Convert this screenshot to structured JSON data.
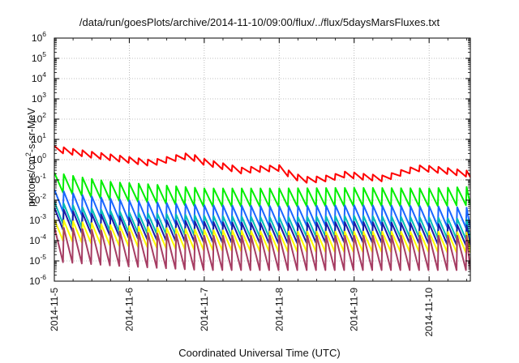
{
  "chart_data": {
    "type": "line",
    "title": "/data/run/goesPlots/archive/2014-11-10/09:00/flux/../flux/5daysMarsFluxes.txt",
    "xlabel": "Coordinated Universal Time (UTC)",
    "ylabel_base": "protons/cm",
    "ylabel_sup": "2",
    "ylabel_rest": "-s-sr-MeV",
    "yscale": "log",
    "ylim": [
      1e-06,
      1000000.0
    ],
    "xlim": [
      0,
      5.55
    ],
    "grid": true,
    "legend": "none",
    "x_ticks": [
      {
        "x": 0,
        "label": "2014-11-5"
      },
      {
        "x": 1,
        "label": "2014-11-6"
      },
      {
        "x": 2,
        "label": "2014-11-7"
      },
      {
        "x": 3,
        "label": "2014-11-8"
      },
      {
        "x": 4,
        "label": "2014-11-9"
      },
      {
        "x": 5,
        "label": "2014-11-10"
      }
    ],
    "y_ticks": [
      {
        "exp": "-6"
      },
      {
        "exp": "-5"
      },
      {
        "exp": "-4"
      },
      {
        "exp": "-3"
      },
      {
        "exp": "-2"
      },
      {
        "exp": "-1"
      },
      {
        "exp": "0"
      },
      {
        "exp": "1"
      },
      {
        "exp": "2"
      },
      {
        "exp": "3"
      },
      {
        "exp": "4"
      },
      {
        "exp": "5"
      },
      {
        "exp": "6"
      }
    ],
    "tick_base": "10",
    "series": [
      {
        "color": "#ff0000",
        "period": 0.125,
        "swing": 0.3,
        "trend": [
          [
            0,
            3.5
          ],
          [
            0.5,
            1.8
          ],
          [
            1.0,
            1.0
          ],
          [
            1.3,
            0.7
          ],
          [
            1.6,
            1.2
          ],
          [
            1.8,
            1.6
          ],
          [
            2.0,
            0.8
          ],
          [
            2.5,
            0.3
          ],
          [
            2.7,
            0.35
          ],
          [
            3.0,
            0.4
          ],
          [
            3.2,
            0.15
          ],
          [
            3.4,
            0.1
          ],
          [
            3.7,
            0.13
          ],
          [
            3.9,
            0.2
          ],
          [
            4.1,
            0.15
          ],
          [
            4.4,
            0.12
          ],
          [
            4.7,
            0.28
          ],
          [
            4.9,
            0.4
          ],
          [
            5.2,
            0.3
          ],
          [
            5.55,
            0.2
          ]
        ]
      },
      {
        "color": "#00ee00",
        "period": 0.125,
        "swing": 0.9,
        "trend": [
          [
            0,
            0.09
          ],
          [
            0.4,
            0.05
          ],
          [
            0.8,
            0.03
          ],
          [
            1.2,
            0.025
          ],
          [
            2.0,
            0.015
          ],
          [
            3.0,
            0.015
          ],
          [
            4.0,
            0.016
          ],
          [
            5.0,
            0.015
          ],
          [
            5.55,
            0.018
          ]
        ]
      },
      {
        "color": "#1a66ff",
        "period": 0.125,
        "swing": 1.0,
        "trend": [
          [
            0,
            0.012
          ],
          [
            0.4,
            0.006
          ],
          [
            0.8,
            0.004
          ],
          [
            1.2,
            0.003
          ],
          [
            2.0,
            0.002
          ],
          [
            3.0,
            0.0018
          ],
          [
            4.0,
            0.002
          ],
          [
            5.0,
            0.0018
          ],
          [
            5.55,
            0.0015
          ]
        ]
      },
      {
        "color": "#00bcb8",
        "period": 0.125,
        "swing": 1.0,
        "trend": [
          [
            0,
            0.003
          ],
          [
            0.4,
            0.0015
          ],
          [
            0.8,
            0.001
          ],
          [
            1.2,
            0.0008
          ],
          [
            2.0,
            0.0006
          ],
          [
            3.0,
            0.0005
          ],
          [
            4.0,
            0.0006
          ],
          [
            5.0,
            0.0005
          ],
          [
            5.55,
            0.0004
          ]
        ]
      },
      {
        "color": "#1a1aa8",
        "period": 0.125,
        "swing": 1.0,
        "trend": [
          [
            0,
            0.0015
          ],
          [
            0.4,
            0.0008
          ],
          [
            0.8,
            0.0006
          ],
          [
            1.2,
            0.0004
          ],
          [
            2.0,
            0.0003
          ],
          [
            3.0,
            0.00025
          ],
          [
            4.0,
            0.0003
          ],
          [
            5.0,
            0.00025
          ],
          [
            5.55,
            0.0002
          ]
        ]
      },
      {
        "color": "#ffff00",
        "period": 0.125,
        "swing": 1.0,
        "trend": [
          [
            0,
            0.0004
          ],
          [
            0.8,
            0.0002
          ],
          [
            2.0,
            0.00012
          ],
          [
            3.0,
            0.0001
          ],
          [
            4.0,
            0.0001
          ],
          [
            5.0,
            0.0001
          ],
          [
            5.55,
            9e-05
          ]
        ]
      },
      {
        "color": "#a63d63",
        "period": 0.125,
        "swing": 1.7,
        "trend": [
          [
            0,
            8e-05
          ],
          [
            0.8,
            5e-05
          ],
          [
            2.0,
            3e-05
          ],
          [
            3.0,
            3e-05
          ],
          [
            4.0,
            3e-05
          ],
          [
            5.0,
            3e-05
          ],
          [
            5.55,
            3e-05
          ]
        ]
      }
    ]
  }
}
